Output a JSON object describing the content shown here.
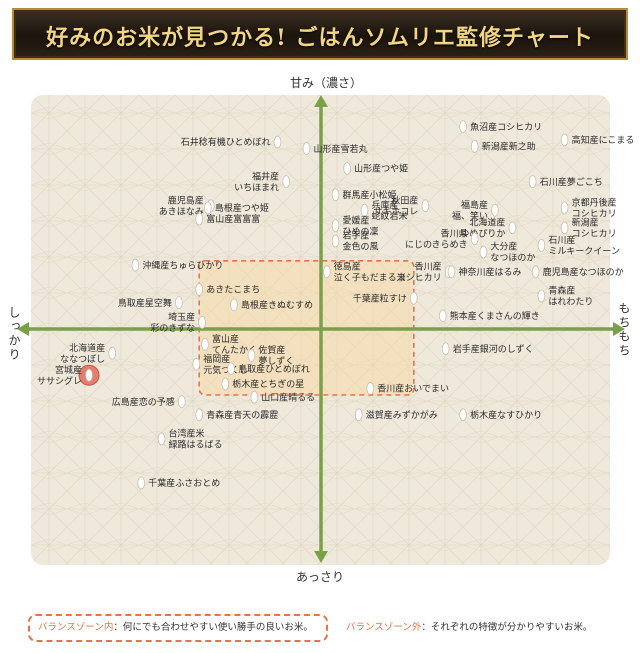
{
  "title": "好みのお米が見つかる! ごはんソムリエ監修チャート",
  "axes": {
    "top": "甘み（濃さ）",
    "bottom": "あっさり",
    "left": "しっかり",
    "right": "もちもち"
  },
  "legend": {
    "balance_name": "バランスゾーン内",
    "balance_desc": "：何にでも合わせやすい使い勝手の良いお米。",
    "outside_name": "バランスゾーン外",
    "outside_desc": "：それぞれの特徴が分かりやすいお米。"
  },
  "colors": {
    "axis": "#7aa04a",
    "zone_border": "#e8734a",
    "zone_fill": "#f6d9a8",
    "highlight": "#e06b5a",
    "grain": "#ffffff"
  },
  "chart_data": {
    "type": "scatter",
    "xlabel_left": "しっかり",
    "xlabel_right": "もちもち",
    "ylabel_top": "甘み（濃さ）",
    "ylabel_bottom": "あっさり",
    "xlim": [
      -100,
      100
    ],
    "ylim": [
      -100,
      100
    ],
    "balance_zone": {
      "x": [
        -42,
        32
      ],
      "y": [
        -30,
        31
      ]
    },
    "highlight": "宮城産 ササシグレ",
    "points": [
      {
        "x": -15,
        "y": 85,
        "side": "L",
        "label": [
          "石井稔有機ひとめぼれ"
        ]
      },
      {
        "x": -5,
        "y": 82,
        "side": "R",
        "label": [
          "山形産雪若丸"
        ]
      },
      {
        "x": 49,
        "y": 92,
        "side": "R",
        "label": [
          "魚沼産コシヒカリ"
        ]
      },
      {
        "x": 84,
        "y": 86,
        "side": "R",
        "label": [
          "高知産にこまる"
        ]
      },
      {
        "x": 53,
        "y": 83,
        "side": "R",
        "label": [
          "新潟産新之助"
        ]
      },
      {
        "x": 9,
        "y": 73,
        "side": "R",
        "label": [
          "山形産つや姫"
        ]
      },
      {
        "x": 73,
        "y": 67,
        "side": "R",
        "label": [
          "石川産夢ごこち"
        ]
      },
      {
        "x": -12,
        "y": 67,
        "side": "L",
        "label": [
          "福井産",
          "いちほまれ"
        ]
      },
      {
        "x": 5,
        "y": 61,
        "side": "R",
        "label": [
          "群馬産小松姫"
        ]
      },
      {
        "x": -38,
        "y": 56,
        "side": "L",
        "label": [
          "鹿児島産",
          "あきほなみ"
        ]
      },
      {
        "x": -39,
        "y": 55,
        "side": "R",
        "label": [
          "島根産つや姫"
        ]
      },
      {
        "x": -42,
        "y": 50,
        "side": "R",
        "label": [
          "富山産富富富"
        ]
      },
      {
        "x": 15,
        "y": 54,
        "side": "R",
        "label": [
          "兵庫産",
          "蛇紋岩米"
        ]
      },
      {
        "x": 36,
        "y": 56,
        "side": "L",
        "label": [
          "秋田産",
          "サキホコレ"
        ]
      },
      {
        "x": 60,
        "y": 54,
        "side": "L",
        "label": [
          "福島産",
          "福、笑い"
        ]
      },
      {
        "x": 84,
        "y": 55,
        "side": "R",
        "label": [
          "京都丹後産",
          "コシヒカリ"
        ]
      },
      {
        "x": 5,
        "y": 47,
        "side": "R",
        "label": [
          "愛媛産",
          "ひめの凜"
        ]
      },
      {
        "x": 66,
        "y": 46,
        "side": "L",
        "label": [
          "北海道産",
          "ゆめぴりか"
        ]
      },
      {
        "x": 84,
        "y": 46,
        "side": "R",
        "label": [
          "新潟産",
          "コシヒカリ"
        ]
      },
      {
        "x": 5,
        "y": 40,
        "side": "R",
        "label": [
          "岩手産",
          "金色の風"
        ]
      },
      {
        "x": 53,
        "y": 41,
        "side": "L",
        "label": [
          "香川県",
          "にじのきらめき"
        ]
      },
      {
        "x": 56,
        "y": 35,
        "side": "R",
        "label": [
          "大分産",
          "なつほのか"
        ]
      },
      {
        "x": 76,
        "y": 38,
        "side": "R",
        "label": [
          "石川産",
          "ミルキークイーン"
        ]
      },
      {
        "x": -64,
        "y": 29,
        "side": "R",
        "label": [
          "沖縄産ちゅらひかり"
        ]
      },
      {
        "x": 2,
        "y": 26,
        "side": "R",
        "label": [
          "徳島産",
          "泣く子もだまる米"
        ]
      },
      {
        "x": 44,
        "y": 26,
        "side": "L",
        "label": [
          "香川産",
          "コシヒカリ"
        ]
      },
      {
        "x": 45,
        "y": 26,
        "side": "R",
        "label": [
          "神奈川産はるみ"
        ]
      },
      {
        "x": 74,
        "y": 26,
        "side": "R",
        "label": [
          "鹿児島産なつほのか"
        ]
      },
      {
        "x": -42,
        "y": 18,
        "side": "R",
        "label": [
          "あきたこまち"
        ]
      },
      {
        "x": 76,
        "y": 15,
        "side": "R",
        "label": [
          "青森産",
          "はれわたり"
        ]
      },
      {
        "x": -49,
        "y": 12,
        "side": "L",
        "label": [
          "鳥取産星空舞"
        ]
      },
      {
        "x": -30,
        "y": 11,
        "side": "R",
        "label": [
          "島根産きぬむすめ"
        ]
      },
      {
        "x": 32,
        "y": 14,
        "side": "L",
        "label": [
          "千葉産粒すけ"
        ]
      },
      {
        "x": 42,
        "y": 6,
        "side": "R",
        "label": [
          "熊本産くまさんの輝き"
        ]
      },
      {
        "x": -41,
        "y": 3,
        "side": "L",
        "label": [
          "埼玉産",
          "彩のきずな"
        ]
      },
      {
        "x": -40,
        "y": -7,
        "side": "R",
        "label": [
          "富山産",
          "てんたかく"
        ]
      },
      {
        "x": -72,
        "y": -11,
        "side": "L",
        "label": [
          "北海道産",
          "ななつぼし"
        ]
      },
      {
        "x": -24,
        "y": -12,
        "side": "R",
        "label": [
          "佐賀産",
          "夢しずく"
        ]
      },
      {
        "x": 43,
        "y": -9,
        "side": "R",
        "label": [
          "岩手産銀河のしずく"
        ]
      },
      {
        "x": -43,
        "y": -16,
        "side": "R",
        "label": [
          "福岡産",
          "元気つくし"
        ]
      },
      {
        "x": -31,
        "y": -18,
        "side": "R",
        "label": [
          "鳥取産ひとめぼれ"
        ]
      },
      {
        "x": -80,
        "y": -21,
        "side": "L",
        "label": [
          "宮城産",
          "ササシグレ"
        ],
        "highlight": true
      },
      {
        "x": -33,
        "y": -25,
        "side": "R",
        "label": [
          "栃木産とちぎの星"
        ]
      },
      {
        "x": -23,
        "y": -31,
        "side": "R",
        "label": [
          "山口産晴るる"
        ]
      },
      {
        "x": 17,
        "y": -27,
        "side": "R",
        "label": [
          "香川産おいでまい"
        ]
      },
      {
        "x": -48,
        "y": -33,
        "side": "L",
        "label": [
          "広島産恋の予感"
        ]
      },
      {
        "x": -42,
        "y": -39,
        "side": "R",
        "label": [
          "青森産青天の霹靂"
        ]
      },
      {
        "x": 13,
        "y": -39,
        "side": "R",
        "label": [
          "滋賀産みずかがみ"
        ]
      },
      {
        "x": 49,
        "y": -39,
        "side": "R",
        "label": [
          "栃木産なすひかり"
        ]
      },
      {
        "x": -55,
        "y": -50,
        "side": "R",
        "label": [
          "台湾産米",
          "緑路はるばる"
        ]
      },
      {
        "x": -62,
        "y": -70,
        "side": "R",
        "label": [
          "千葉産ふさおとめ"
        ]
      }
    ]
  }
}
